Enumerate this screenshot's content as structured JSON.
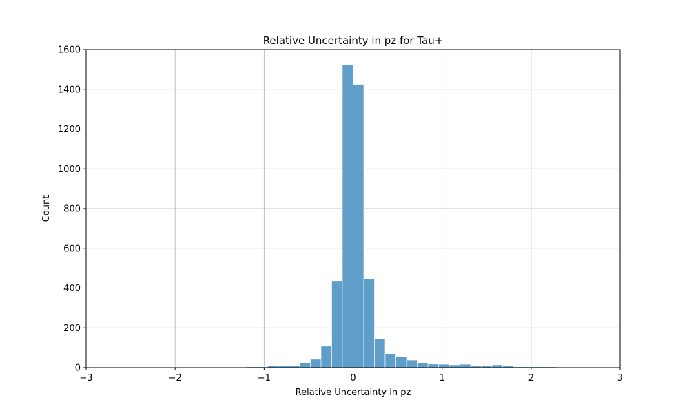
{
  "chart_data": {
    "type": "bar",
    "title": "Relative Uncertainty in pz for Tau+",
    "xlabel": "Relative Uncertainty in pz",
    "ylabel": "Count",
    "xlim": [
      -3,
      3
    ],
    "ylim": [
      0,
      1600
    ],
    "xticks": [
      -3,
      -2,
      -1,
      0,
      1,
      2,
      3
    ],
    "xtick_labels": [
      "−3",
      "−2",
      "−1",
      "0",
      "1",
      "2",
      "3"
    ],
    "yticks": [
      0,
      200,
      400,
      600,
      800,
      1000,
      1200,
      1400,
      1600
    ],
    "ytick_labels": [
      "0",
      "200",
      "400",
      "600",
      "800",
      "1000",
      "1200",
      "1400",
      "1600"
    ],
    "grid": true,
    "bar_color": "#5f9ec9",
    "bin_width": 0.12,
    "bin_starts": [
      -1.32,
      -1.2,
      -1.08,
      -0.96,
      -0.84,
      -0.72,
      -0.6,
      -0.48,
      -0.36,
      -0.24,
      -0.12,
      0.0,
      0.12,
      0.24,
      0.36,
      0.48,
      0.6,
      0.72,
      0.84,
      0.96,
      1.08,
      1.2,
      1.32,
      1.44,
      1.56,
      1.68,
      1.8,
      1.92,
      2.04,
      2.16,
      2.28,
      2.4,
      2.52,
      2.64,
      2.76
    ],
    "values": [
      3,
      4,
      4,
      9,
      10,
      10,
      22,
      42,
      108,
      437,
      1525,
      1425,
      447,
      143,
      67,
      55,
      38,
      25,
      18,
      17,
      14,
      17,
      9,
      9,
      14,
      11,
      4,
      4,
      4,
      4,
      3,
      0,
      3,
      0,
      3
    ]
  }
}
